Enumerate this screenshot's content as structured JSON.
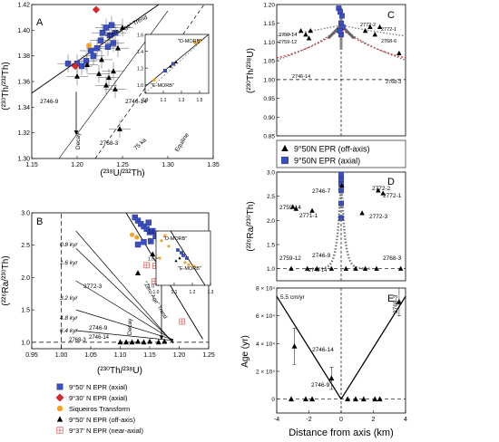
{
  "colors": {
    "axial": "#3b4fc0",
    "axial_930": "#e0262a",
    "siqueiros": "#f5a123",
    "off_axis": "#000000",
    "near_axial": "#d9534f",
    "red_model": "#e0262a",
    "grey_model": "#777777"
  },
  "legend_main": {
    "items": [
      {
        "symbol": "square",
        "label": "9°50' N EPR (axial)"
      },
      {
        "symbol": "diamond",
        "label": "9°30' N EPR (axial)"
      },
      {
        "symbol": "circle",
        "label": "Siqueiros Transform"
      },
      {
        "symbol": "triangle",
        "label": "9°50' N EPR (off-axis)"
      },
      {
        "symbol": "crossbox",
        "label": "9°37' N EPR (near-axial)"
      }
    ]
  },
  "legend_right": {
    "items": [
      {
        "symbol": "triangle",
        "label": "9°50N EPR (off-axis)"
      },
      {
        "symbol": "square",
        "label": "9°50N EPR (axial)"
      }
    ]
  },
  "chart_data": [
    {
      "panel": "A",
      "type": "scatter",
      "panel_label": "A",
      "xlabel": "(²³⁸U/²³²Th)",
      "ylabel": "(²³⁰Th/²³²Th)",
      "xlim": [
        1.15,
        1.35
      ],
      "ylim": [
        1.3,
        1.42
      ],
      "xticks": [
        "1.15",
        "1.20",
        "1.25",
        "1.30",
        "1.35"
      ],
      "yticks": [
        "1.30",
        "1.32",
        "1.34",
        "1.36",
        "1.38",
        "1.40",
        "1.42"
      ],
      "annotations": {
        "trend": "\"Zero-Age\" Trend",
        "decay": "Decay",
        "ka75": "75 ka",
        "equiline": "Equiline",
        "s2746_9": "2746-9",
        "s2746_14": "2746-14",
        "s2768_3": "2768-3"
      },
      "axial": [
        [
          1.2,
          1.374
        ],
        [
          1.205,
          1.372
        ],
        [
          1.21,
          1.376
        ],
        [
          1.218,
          1.38
        ],
        [
          1.222,
          1.386
        ],
        [
          1.226,
          1.392
        ],
        [
          1.228,
          1.398
        ],
        [
          1.232,
          1.402
        ],
        [
          1.236,
          1.396
        ],
        [
          1.238,
          1.404
        ],
        [
          1.24,
          1.39
        ],
        [
          1.19,
          1.374
        ],
        [
          1.215,
          1.384
        ],
        [
          1.234,
          1.387
        ],
        [
          1.242,
          1.398
        ]
      ],
      "axial_930": [
        [
          1.198,
          1.372
        ],
        [
          1.221,
          1.416
        ]
      ],
      "siqueiros": [
        [
          1.213,
          1.388
        ]
      ],
      "off_axis": [
        [
          1.2,
          1.364
        ],
        [
          1.211,
          1.373
        ],
        [
          1.227,
          1.377
        ],
        [
          1.235,
          1.363
        ],
        [
          1.245,
          1.386
        ],
        [
          1.24,
          1.368
        ],
        [
          1.242,
          1.354
        ],
        [
          1.224,
          1.366
        ],
        [
          1.25,
          1.402
        ],
        [
          1.232,
          1.357
        ],
        [
          1.247,
          1.323
        ]
      ],
      "inset": {
        "xlim": [
          0.9,
          1.6
        ],
        "ylim": [
          0.9,
          1.6
        ],
        "xticks": [
          "0.9",
          "1.1",
          "1.3",
          "1.5"
        ],
        "yticks": [
          "1.0",
          "1.2",
          "1.4",
          "1.6"
        ],
        "labels": {
          "d_morb": "\"D-MORB\"",
          "e_morb": "\"E-MORB\""
        },
        "points": [
          [
            1.0,
            1.06
          ],
          [
            1.12,
            1.17
          ],
          [
            1.18,
            1.22
          ],
          [
            1.21,
            1.25
          ],
          [
            1.24,
            1.27
          ],
          [
            1.45,
            1.5
          ],
          [
            1.5,
            1.52
          ]
        ]
      }
    },
    {
      "panel": "B",
      "type": "scatter",
      "panel_label": "B",
      "xlabel": "(²³⁰Th/²³⁸U)",
      "ylabel": "(²²⁶Ra/²³⁰Th)",
      "xlim": [
        0.95,
        1.25
      ],
      "ylim": [
        0.9,
        3.0
      ],
      "xticks": [
        "0.95",
        "1.00",
        "1.05",
        "1.10",
        "1.15",
        "1.20",
        "1.25"
      ],
      "yticks": [
        "1.0",
        "1.5",
        "2.0",
        "2.5",
        "3.0"
      ],
      "annotations": {
        "kyr08": "0.8 kyr",
        "kyr16": "1.6 kyr",
        "kyr32": "3.2 kyr",
        "kyr48": "4.8 kyr",
        "kyr64": "6.4 kyr",
        "trend": "\"Zero-Age\" Trend",
        "decay": "Decay",
        "s2772_3": "2772-3",
        "s2746_9": "2746-9",
        "s2746_14": "2746-14",
        "s2768_3": "2768-3"
      },
      "axial": [
        [
          1.125,
          2.93
        ],
        [
          1.13,
          2.88
        ],
        [
          1.135,
          2.83
        ],
        [
          1.14,
          2.79
        ],
        [
          1.145,
          2.75
        ],
        [
          1.15,
          2.7
        ],
        [
          1.155,
          2.72
        ],
        [
          1.148,
          2.85
        ],
        [
          1.16,
          2.64
        ],
        [
          1.165,
          2.6
        ],
        [
          1.152,
          2.56
        ],
        [
          1.14,
          2.55
        ],
        [
          1.13,
          2.51
        ],
        [
          1.17,
          2.47
        ]
      ],
      "off_axis": [
        [
          1.13,
          2.07
        ],
        [
          1.175,
          2.42
        ],
        [
          1.18,
          2.52
        ],
        [
          1.185,
          2.48
        ],
        [
          1.165,
          2.47
        ],
        [
          1.155,
          2.36
        ],
        [
          1.1,
          1.0
        ],
        [
          1.11,
          1.0
        ],
        [
          1.12,
          1.0
        ],
        [
          1.13,
          1.01
        ],
        [
          1.14,
          1.0
        ],
        [
          1.15,
          1.01
        ],
        [
          1.165,
          1.0
        ],
        [
          1.175,
          1.01
        ]
      ],
      "near_axial": [
        [
          1.145,
          2.19
        ],
        [
          1.16,
          2.18
        ],
        [
          1.158,
          1.94
        ],
        [
          1.205,
          1.32
        ],
        [
          1.165,
          2.29
        ]
      ],
      "siqueiros": [
        [
          1.12,
          2.66
        ],
        [
          1.128,
          2.62
        ],
        [
          1.15,
          2.58
        ]
      ],
      "inset": {
        "xlim": [
          1.0,
          1.3
        ],
        "ylim": [
          1.0,
          2.0
        ],
        "xticks": [
          "1.0",
          "1.1",
          "1.2",
          "1.3"
        ],
        "yticks": [
          "1.0",
          "1.5",
          "2.0"
        ],
        "labels": {
          "d_morb": "\"D-MORB\"",
          "e_morb": "\"E-MORB\""
        }
      }
    },
    {
      "panel": "C",
      "type": "scatter",
      "panel_label": "C",
      "xlabel": "",
      "ylabel": "(²³⁰Th/²³⁸U)",
      "xlim": [
        -4,
        4
      ],
      "ylim": [
        0.85,
        1.2
      ],
      "yticks": [
        "0.85",
        "0.90",
        "0.95",
        "1.00",
        "1.05",
        "1.10",
        "1.15",
        "1.20"
      ],
      "off_axis": [
        [
          -2.5,
          1.13
        ],
        [
          -2.2,
          1.12
        ],
        [
          -1.9,
          1.13
        ],
        [
          -2.0,
          1.11
        ],
        [
          1.8,
          1.14
        ],
        [
          1.5,
          1.13
        ],
        [
          2.1,
          1.12
        ],
        [
          2.4,
          1.14
        ],
        [
          3.6,
          1.07
        ]
      ],
      "axial": [
        [
          -0.15,
          1.19
        ],
        [
          -0.05,
          1.18
        ],
        [
          0.05,
          1.17
        ],
        [
          0.0,
          1.15
        ],
        [
          0.1,
          1.14
        ],
        [
          0.0,
          1.12
        ],
        [
          -0.08,
          1.13
        ]
      ],
      "labels": {
        "s2759_14": "2759-14",
        "s2759_12": "2759-12",
        "s2746_14": "2746-14",
        "s2772_2": "2772-2",
        "s2772_1": "2772-1",
        "s2768_6": "2768-6",
        "s2768_3": "2768-3"
      }
    },
    {
      "panel": "D",
      "type": "scatter",
      "panel_label": "D",
      "xlabel": "",
      "ylabel": "(²²⁶Ra/²³⁰Th)",
      "xlim": [
        -4,
        4
      ],
      "ylim": [
        0.75,
        3.0
      ],
      "yticks": [
        "1.0",
        "1.5",
        "2.0",
        "2.5",
        "3.0"
      ],
      "off_axis": [
        [
          -3.0,
          2.28
        ],
        [
          -2.8,
          2.24
        ],
        [
          -1.8,
          2.2
        ],
        [
          0.05,
          2.72
        ],
        [
          1.3,
          2.15
        ],
        [
          2.3,
          2.62
        ],
        [
          2.6,
          2.56
        ],
        [
          3.7,
          1.0
        ],
        [
          -3.1,
          1.0
        ],
        [
          -2.1,
          1.0
        ],
        [
          -1.5,
          1.0
        ],
        [
          -0.6,
          1.0
        ],
        [
          0.3,
          1.0
        ],
        [
          0.9,
          1.0
        ],
        [
          1.5,
          1.0
        ],
        [
          2.2,
          1.0
        ]
      ],
      "axial": [
        [
          0.0,
          2.95
        ],
        [
          0.0,
          2.85
        ],
        [
          0.0,
          2.75
        ],
        [
          0.0,
          2.62
        ],
        [
          0.0,
          2.35
        ],
        [
          0.0,
          2.05
        ]
      ],
      "labels": {
        "s2746_7": "2746-7",
        "s2772_2": "2772-2",
        "s2772_1": "2772-1",
        "s2759_14": "2759-14",
        "s2771_1": "2771-1",
        "s2772_3": "2772-3",
        "s2746_9": "2746-9",
        "s2759_12": "2759-12",
        "s2746_14": "2746-14",
        "s2768_3": "2768-3"
      }
    },
    {
      "panel": "E",
      "type": "scatter",
      "panel_label": "E",
      "xlabel": "Distance from axis (km)",
      "ylabel": "Age (yr)",
      "xlim": [
        -4,
        4
      ],
      "ylim": [
        -10000,
        80000
      ],
      "xticks": [
        "-4",
        "-2",
        "0",
        "2",
        "4"
      ],
      "yticks": [
        "0",
        "2 × 10⁴",
        "4 × 10⁴",
        "6 × 10⁴",
        "8 × 10⁴"
      ],
      "annotations": {
        "rate": "5.5 cm/yr",
        "s2746_14": "2746-14",
        "s2746_9": "2746-9",
        "s2768_3": "2768-3"
      },
      "points": [
        [
          -2.9,
          38000
        ],
        [
          -0.6,
          15000
        ],
        [
          3.6,
          70000
        ],
        [
          -3.1,
          0
        ],
        [
          -2.2,
          0
        ],
        [
          -1.8,
          0
        ],
        [
          0.4,
          0
        ],
        [
          0.9,
          0
        ],
        [
          1.4,
          0
        ],
        [
          2.1,
          0
        ],
        [
          2.4,
          0
        ]
      ]
    }
  ]
}
